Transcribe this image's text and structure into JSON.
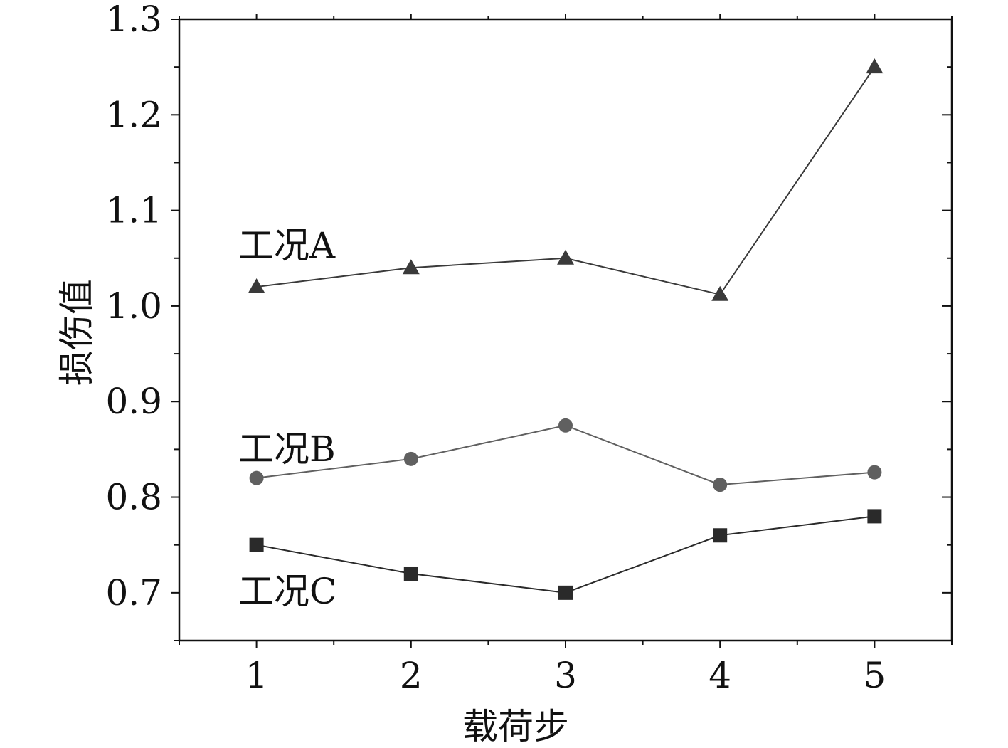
{
  "chart_data": {
    "type": "line",
    "xlabel": "载荷步",
    "ylabel": "损伤值",
    "x": [
      1,
      2,
      3,
      4,
      5
    ],
    "xlim": [
      0.5,
      5.5
    ],
    "ylim": [
      0.65,
      1.3
    ],
    "x_ticks": [
      "1",
      "2",
      "3",
      "4",
      "5"
    ],
    "y_ticks": [
      "0.7",
      "0.8",
      "0.9",
      "1.0",
      "1.1",
      "1.2",
      "1.3"
    ],
    "grid": false,
    "series": [
      {
        "name": "工况A",
        "marker": "triangle",
        "color": "#3a3a3a",
        "values": [
          1.02,
          1.04,
          1.05,
          1.012,
          1.25
        ]
      },
      {
        "name": "工况B",
        "marker": "circle",
        "color": "#606060",
        "values": [
          0.82,
          0.84,
          0.875,
          0.813,
          0.826
        ]
      },
      {
        "name": "工况C",
        "marker": "square",
        "color": "#2a2a2a",
        "values": [
          0.75,
          0.72,
          0.7,
          0.76,
          0.78
        ]
      }
    ]
  }
}
